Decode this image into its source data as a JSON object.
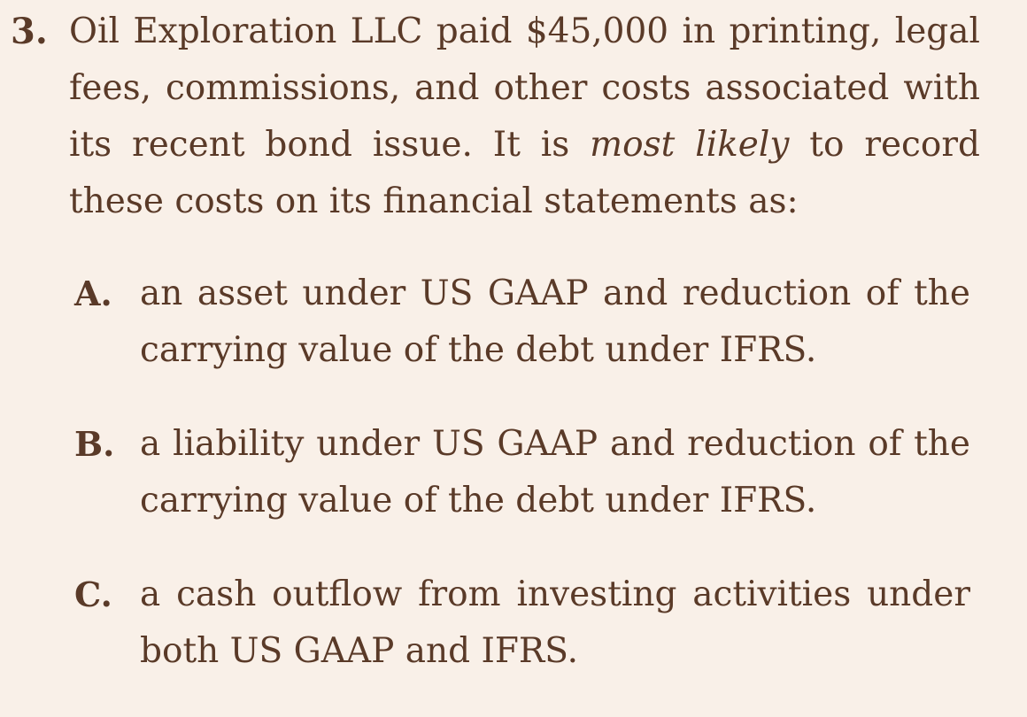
{
  "question": {
    "number": "3.",
    "text_before": "Oil Exploration LLC paid $45,000 in printing, legal fees, commissions, and other costs associated with its recent bond issue. It is ",
    "emphasis": "most likely",
    "text_after": " to record these costs on its financial statements as:"
  },
  "options": [
    {
      "letter": "A.",
      "text": "an asset under US GAAP and reduction of the carrying value of the debt under IFRS."
    },
    {
      "letter": "B.",
      "text": "a liability under US GAAP and reduction of the carrying value of the debt under IFRS."
    },
    {
      "letter": "C.",
      "text": "a cash outflow from investing activities under both US GAAP and IFRS."
    }
  ]
}
